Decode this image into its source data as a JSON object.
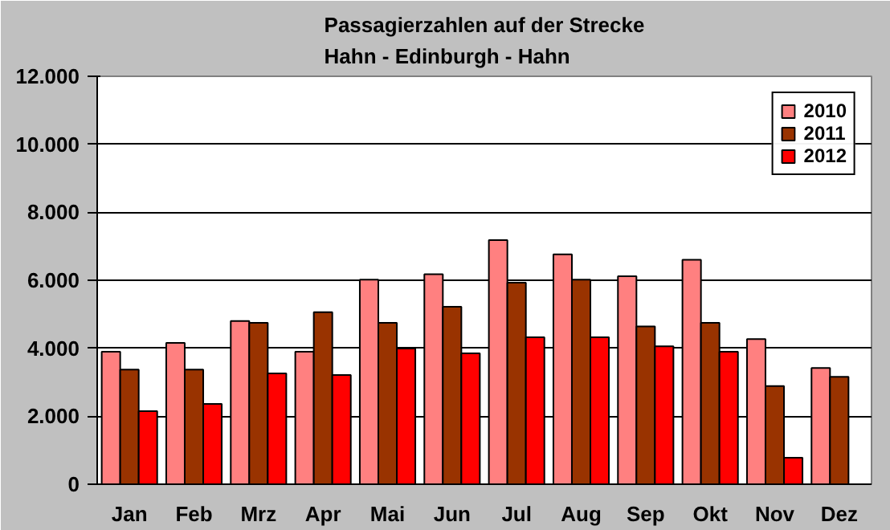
{
  "chart_data": {
    "type": "bar",
    "title": "Passagierzahlen auf der Strecke\nHahn - Edinburgh - Hahn",
    "categories": [
      "Jan",
      "Feb",
      "Mrz",
      "Apr",
      "Mai",
      "Jun",
      "Jul",
      "Aug",
      "Sep",
      "Okt",
      "Nov",
      "Dez"
    ],
    "series": [
      {
        "name": "2010",
        "color": "#ff8080",
        "values": [
          3900,
          4160,
          4800,
          3900,
          6020,
          6180,
          7180,
          6760,
          6120,
          6600,
          4270,
          3420
        ]
      },
      {
        "name": "2011",
        "color": "#993300",
        "values": [
          3370,
          3370,
          4750,
          5060,
          4750,
          5220,
          5930,
          6020,
          4640,
          4750,
          2890,
          3160
        ]
      },
      {
        "name": "2012",
        "color": "#ff0000",
        "values": [
          2150,
          2360,
          3260,
          3210,
          3990,
          3850,
          4320,
          4320,
          4060,
          3900,
          780,
          null
        ]
      }
    ],
    "ylim": [
      0,
      12000
    ],
    "yticks": [
      {
        "value": 0,
        "label": "0"
      },
      {
        "value": 2000,
        "label": "2.000"
      },
      {
        "value": 4000,
        "label": "4.000"
      },
      {
        "value": 6000,
        "label": "6.000"
      },
      {
        "value": 8000,
        "label": "8.000"
      },
      {
        "value": 10000,
        "label": "10.000"
      },
      {
        "value": 12000,
        "label": "12.000"
      }
    ],
    "grid": "y",
    "legend": "top right"
  }
}
